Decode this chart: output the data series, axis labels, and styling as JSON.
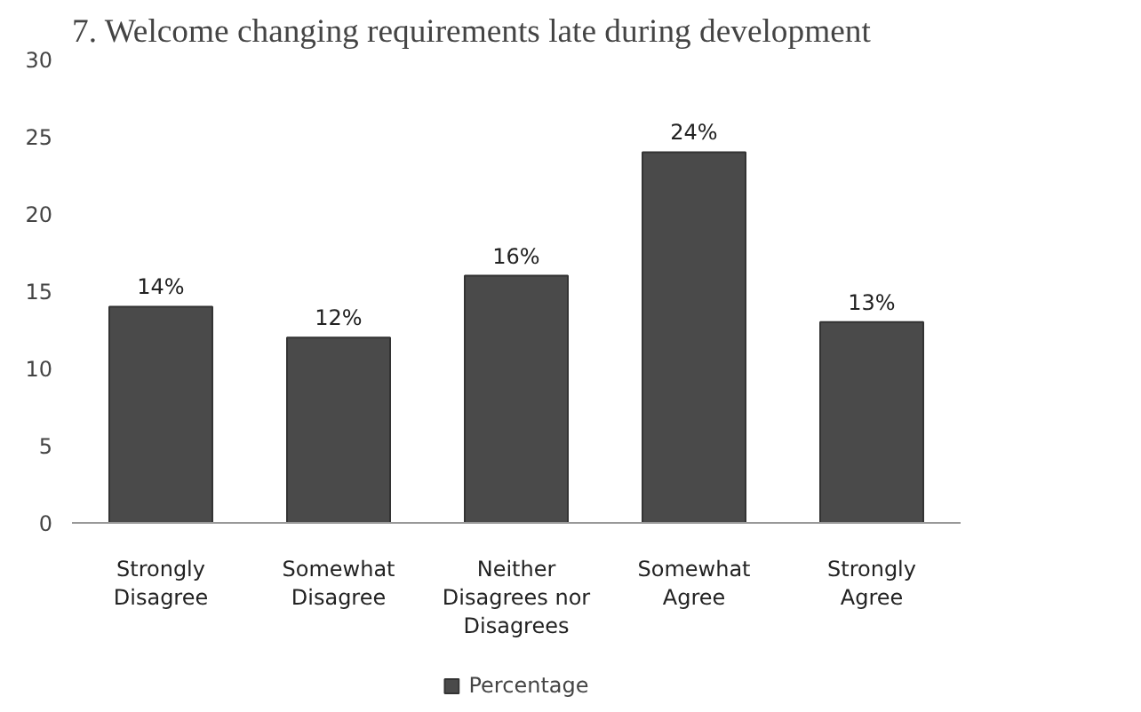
{
  "chart_data": {
    "type": "bar",
    "title": "7. Welcome  changing  requirements  late  during  development",
    "categories": [
      "Strongly Disagree",
      "Somewhat Disagree",
      "Neither Disagrees nor Disagrees",
      "Somewhat Agree",
      "Strongly Agree"
    ],
    "series": [
      {
        "name": "Percentage",
        "color": "#4a4a4a",
        "values": [
          14,
          12,
          16,
          24,
          13
        ],
        "value_labels": [
          "14%",
          "12%",
          "16%",
          "24%",
          "13%"
        ]
      }
    ],
    "ylim": [
      0,
      30
    ],
    "yticks": [
      0,
      5,
      10,
      15,
      20,
      25,
      30
    ],
    "grid": false,
    "legend": "bottom"
  }
}
